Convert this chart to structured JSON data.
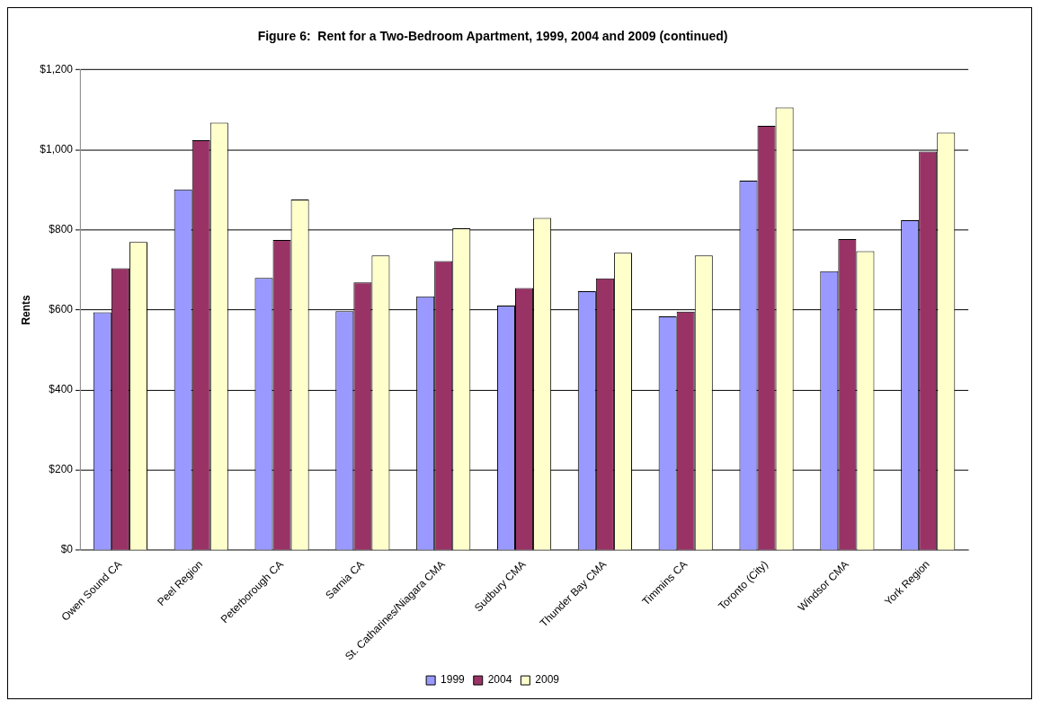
{
  "chart_data": {
    "type": "bar",
    "title": "Figure 6:  Rent for a Two-Bedroom Apartment, 1999, 2004 and 2009 (continued)",
    "ylabel": "Rents",
    "categories": [
      "Owen Sound CA",
      "Peel Region",
      "Peterborough CA",
      "Sarnia CA",
      "St. Catharines/Niagara CMA",
      "Sudbury CMA",
      "Thunder Bay CMA",
      "Timmins CA",
      "Toronto (City)",
      "Windsor CMA",
      "York Region"
    ],
    "series": [
      {
        "name": "1999",
        "color": "#9999ff",
        "values": [
          594,
          901,
          680,
          597,
          634,
          611,
          647,
          584,
          923,
          697,
          824
        ]
      },
      {
        "name": "2004",
        "color": "#993366",
        "values": [
          704,
          1024,
          775,
          669,
          722,
          655,
          679,
          596,
          1060,
          777,
          996
        ]
      },
      {
        "name": "2009",
        "color": "#ffffcc",
        "values": [
          770,
          1068,
          876,
          736,
          804,
          830,
          743,
          736,
          1106,
          747,
          1043
        ]
      }
    ],
    "ylim": [
      0,
      1200
    ],
    "yticks": [
      {
        "value": 0,
        "label": "$0"
      },
      {
        "value": 200,
        "label": "$200"
      },
      {
        "value": 400,
        "label": "$400"
      },
      {
        "value": 600,
        "label": "$600"
      },
      {
        "value": 800,
        "label": "$800"
      },
      {
        "value": 1000,
        "label": "$1,000"
      },
      {
        "value": 1200,
        "label": "$1,200"
      }
    ],
    "grid": "y",
    "legend": "bottom"
  }
}
